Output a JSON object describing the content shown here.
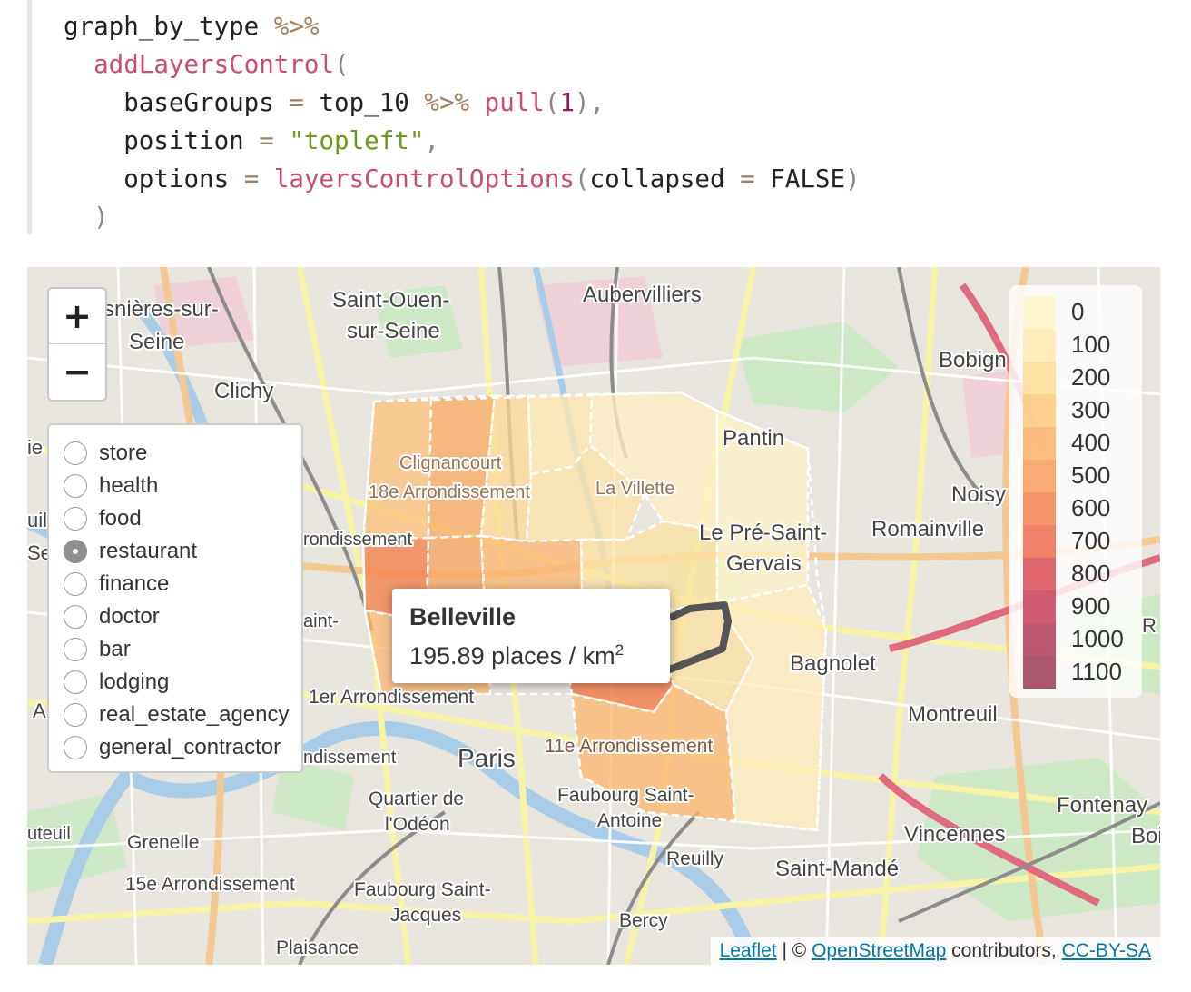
{
  "code": {
    "line1": {
      "obj": "graph_by_type",
      "pipe": "%>%"
    },
    "line2": {
      "fn": "addLayersControl",
      "paren": "("
    },
    "line3": {
      "arg": "baseGroups",
      "eq": "=",
      "val": "top_10",
      "pipe": "%>%",
      "fn": "pull",
      "open": "(",
      "num": "1",
      "close": "),"
    },
    "line4": {
      "arg": "position",
      "eq": "=",
      "str": "\"topleft\"",
      "comma": ","
    },
    "line5": {
      "arg": "options",
      "eq": "=",
      "fn": "layersControlOptions",
      "open": "(",
      "inner_arg": "collapsed",
      "eq2": "=",
      "val": "FALSE",
      "close": ")"
    },
    "line6": {
      "close": ")"
    }
  },
  "map": {
    "zoom_in": "+",
    "zoom_out": "−",
    "layers": [
      {
        "label": "store",
        "selected": false
      },
      {
        "label": "health",
        "selected": false
      },
      {
        "label": "food",
        "selected": false
      },
      {
        "label": "restaurant",
        "selected": true
      },
      {
        "label": "finance",
        "selected": false
      },
      {
        "label": "doctor",
        "selected": false
      },
      {
        "label": "bar",
        "selected": false
      },
      {
        "label": "lodging",
        "selected": false
      },
      {
        "label": "real_estate_agency",
        "selected": false
      },
      {
        "label": "general_contractor",
        "selected": false
      }
    ],
    "legend": [
      {
        "label": "0",
        "color": "#fff6c8"
      },
      {
        "label": "100",
        "color": "#ffebb0"
      },
      {
        "label": "200",
        "color": "#fedd96"
      },
      {
        "label": "300",
        "color": "#fdc97c"
      },
      {
        "label": "400",
        "color": "#fbb36a"
      },
      {
        "label": "500",
        "color": "#f99b5c"
      },
      {
        "label": "600",
        "color": "#f5844f"
      },
      {
        "label": "700",
        "color": "#ee6b4f"
      },
      {
        "label": "800",
        "color": "#dd4b55"
      },
      {
        "label": "900",
        "color": "#c93f58"
      },
      {
        "label": "1000",
        "color": "#b13a5a"
      },
      {
        "label": "1100",
        "color": "#9d3a58"
      }
    ],
    "popup": {
      "title": "Belleville",
      "value": "195.89 places / km",
      "sup": "2"
    },
    "attribution": {
      "leaflet": "Leaflet",
      "sep": " | © ",
      "osm": "OpenStreetMap",
      "mid": " contributors, ",
      "license": "CC-BY-SA"
    },
    "place_labels": [
      "Saint-Ouen-",
      "sur-Seine",
      "Aubervilliers",
      "snières-sur-",
      "Seine",
      "Clichy",
      "Bobign",
      "Pantin",
      "Noisy",
      "Romainville",
      "Le Pré-Saint-",
      "Gervais",
      "Clignancourt",
      "18e Arrondissement",
      "La Villette",
      "Bagnolet",
      "Montreuil",
      "1er Arrondissement",
      "Paris",
      "11e Arrondissement",
      "Quartier de",
      "l'Odéon",
      "Faubourg Saint-",
      "Antoine",
      "Reuilly",
      "Fontenay",
      "Bois",
      "Vincennes",
      "Saint-Mandé",
      "Grenelle",
      "15e Arrondissement",
      "Faubourg Saint-",
      "Jacques",
      "Bercy",
      "Plaisance",
      "ndissement",
      "rondissement",
      "aint-",
      "ie",
      "uil",
      "Se",
      "A",
      "uteuil",
      "R"
    ]
  }
}
